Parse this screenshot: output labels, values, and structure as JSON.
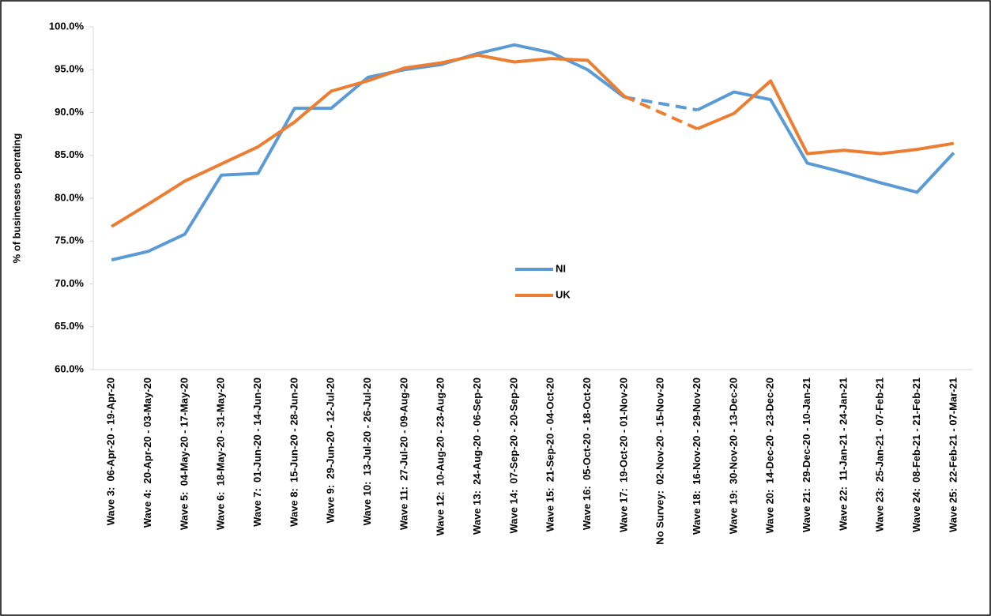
{
  "chart_data": {
    "type": "line",
    "y_axis_label": "% of businesses operating",
    "categories": [
      "Wave 3:  06-Apr-20 - 19-Apr-20",
      "Wave 4:  20-Apr-20 - 03-May-20",
      "Wave 5:  04-May-20 - 17-May-20",
      "Wave 6:  18-May-20 - 31-May-20",
      "Wave 7:  01-Jun-20 - 14-Jun-20",
      "Wave 8:  15-Jun-20 - 28-Jun-20",
      "Wave 9:  29-Jun-20 - 12-Jul-20",
      "Wave 10:  13-Jul-20 - 26-Jul-20",
      "Wave 11:  27-Jul-20 - 09-Aug-20",
      "Wave 12:  10-Aug-20 - 23-Aug-20",
      "Wave 13:  24-Aug-20 - 06-Sep-20",
      "Wave 14:  07-Sep-20 - 20-Sep-20",
      "Wave 15:  21-Sep-20 - 04-Oct-20",
      "Wave 16:  05-Oct-20 - 18-Oct-20",
      "Wave 17:  19-Oct-20 - 01-Nov-20",
      "No Survey:  02-Nov-20 - 15-Nov-20",
      "Wave 18:  16-Nov-20 - 29-Nov-20",
      "Wave 19:  30-Nov-20 - 13-Dec-20",
      "Wave 20:  14-Dec-20 - 23-Dec-20",
      "Wave 21:  29-Dec-20 - 10-Jan-21",
      "Wave 22:  11-Jan-21 - 24-Jan-21",
      "Wave 23:  25-Jan-21 - 07-Feb-21",
      "Wave 24:  08-Feb-21 - 21-Feb-21",
      "Wave 25:  22-Feb-21 - 07-Mar-21"
    ],
    "series": [
      {
        "name": "NI",
        "color": "#5b9bd5",
        "values": [
          72.8,
          73.8,
          75.8,
          82.7,
          82.9,
          90.5,
          90.5,
          94.1,
          95.0,
          95.6,
          96.9,
          97.9,
          97.0,
          95.0,
          91.8,
          null,
          90.3,
          92.4,
          91.5,
          84.1,
          83.0,
          81.8,
          80.7,
          85.3
        ]
      },
      {
        "name": "UK",
        "color": "#ed7d31",
        "values": [
          76.7,
          79.3,
          82.0,
          84.0,
          86.0,
          88.9,
          92.5,
          93.7,
          95.2,
          95.8,
          96.7,
          95.9,
          96.3,
          96.1,
          91.9,
          null,
          88.1,
          89.9,
          93.7,
          85.2,
          85.6,
          85.2,
          85.7,
          86.4
        ]
      }
    ],
    "gap_style": "dashed",
    "ylim": [
      60,
      100
    ],
    "yticks": [
      {
        "value": 60,
        "label": "60.0%"
      },
      {
        "value": 65,
        "label": "65.0%"
      },
      {
        "value": 70,
        "label": "70.0%"
      },
      {
        "value": 75,
        "label": "75.0%"
      },
      {
        "value": 80,
        "label": "80.0%"
      },
      {
        "value": 85,
        "label": "85.0%"
      },
      {
        "value": 90,
        "label": "90.0%"
      },
      {
        "value": 95,
        "label": "95.0%"
      },
      {
        "value": 100,
        "label": "100.0%"
      }
    ]
  }
}
